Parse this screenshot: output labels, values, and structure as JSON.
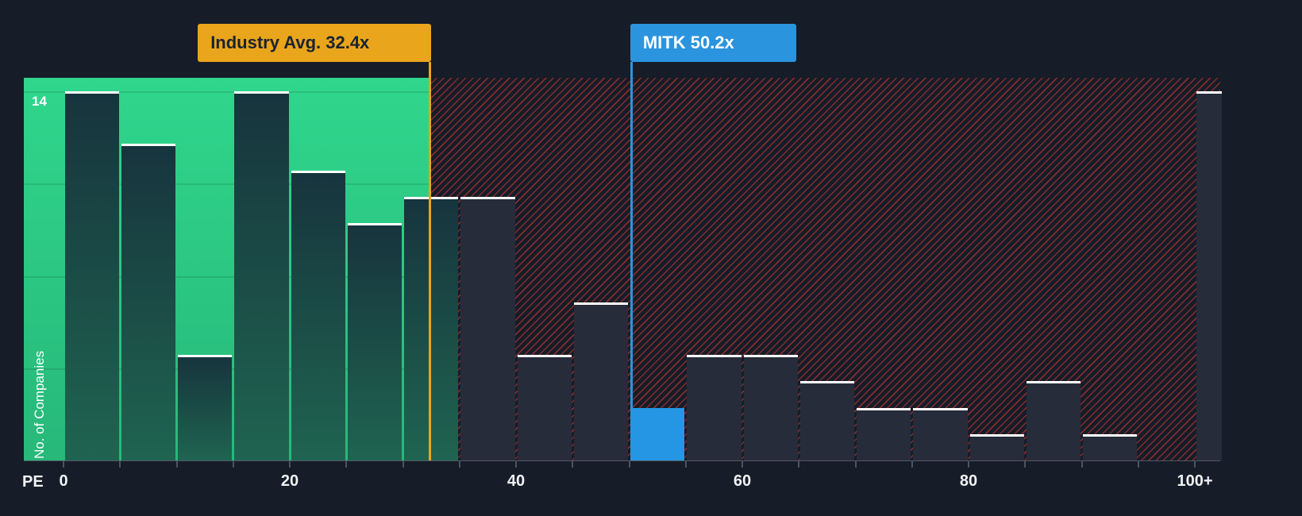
{
  "chart_data": {
    "type": "bar",
    "subtype": "histogram",
    "x_axis": {
      "title": "PE",
      "tick_values": [
        0,
        20,
        40,
        60,
        80,
        100
      ],
      "tick_labels": [
        "0",
        "20",
        "40",
        "60",
        "80",
        "100+"
      ]
    },
    "y_axis": {
      "title": "No. of Companies",
      "max": 14,
      "max_label": "14"
    },
    "bins": [
      {
        "pe_start": 0,
        "pe_end": 5,
        "count": 14
      },
      {
        "pe_start": 5,
        "pe_end": 10,
        "count": 12
      },
      {
        "pe_start": 10,
        "pe_end": 15,
        "count": 4
      },
      {
        "pe_start": 15,
        "pe_end": 20,
        "count": 14
      },
      {
        "pe_start": 20,
        "pe_end": 25,
        "count": 11
      },
      {
        "pe_start": 25,
        "pe_end": 30,
        "count": 9
      },
      {
        "pe_start": 30,
        "pe_end": 35,
        "count": 10
      },
      {
        "pe_start": 35,
        "pe_end": 40,
        "count": 10
      },
      {
        "pe_start": 40,
        "pe_end": 45,
        "count": 4
      },
      {
        "pe_start": 45,
        "pe_end": 50,
        "count": 6
      },
      {
        "pe_start": 50,
        "pe_end": 55,
        "count": 2
      },
      {
        "pe_start": 55,
        "pe_end": 60,
        "count": 4
      },
      {
        "pe_start": 60,
        "pe_end": 65,
        "count": 4
      },
      {
        "pe_start": 65,
        "pe_end": 70,
        "count": 3
      },
      {
        "pe_start": 70,
        "pe_end": 75,
        "count": 2
      },
      {
        "pe_start": 75,
        "pe_end": 80,
        "count": 2
      },
      {
        "pe_start": 80,
        "pe_end": 85,
        "count": 1
      },
      {
        "pe_start": 85,
        "pe_end": 90,
        "count": 3
      },
      {
        "pe_start": 90,
        "pe_end": 95,
        "count": 1
      },
      {
        "pe_start": 95,
        "pe_end": 100,
        "count": 0
      },
      {
        "pe_start": 100,
        "pe_end": 102.5,
        "count": 14,
        "label": "100+"
      }
    ],
    "highlight": {
      "pe_start": 50,
      "company": "MITK"
    },
    "markers": [
      {
        "id": "industry-avg",
        "label": "Industry Avg. 32.4x",
        "value": 32.4,
        "color": "#e9a51b"
      },
      {
        "id": "company",
        "label": "MITK 50.2x",
        "value": 50.2,
        "color": "#2b94de"
      }
    ],
    "zones": [
      {
        "id": "below-industry-avg",
        "from": "plot-left",
        "to": 32.4,
        "style": "green"
      },
      {
        "id": "above-industry-avg",
        "from": 32.4,
        "to": "plot-right",
        "style": "red-hatch"
      }
    ],
    "gridline_counts": [
      3.5,
      7,
      10.5,
      14
    ]
  },
  "colors": {
    "background": "#161c28",
    "green_zone_top": "#30d68c",
    "green_zone_bottom": "#27b87a",
    "hatch_red": "#de3c32",
    "bar_dark": "#272c3b",
    "bar_green_top": "#17343d",
    "bar_green_bottom": "#1f6450",
    "company_blue": "#2496e4",
    "industry_amber": "#e9a51b",
    "bar_cap": "#ffffff"
  }
}
